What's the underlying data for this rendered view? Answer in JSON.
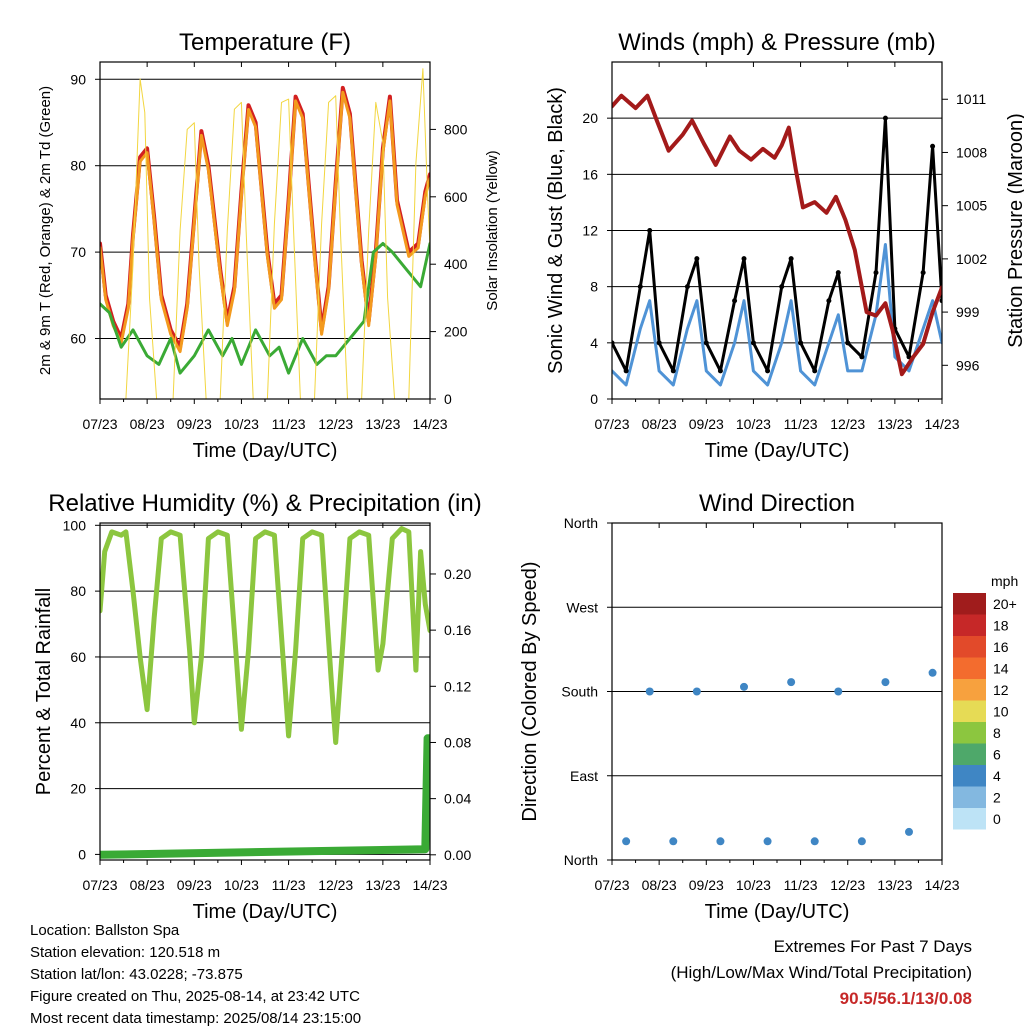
{
  "chart_data": [
    {
      "type": "line",
      "title": "Temperature (F)",
      "xlabel": "Time (Day/UTC)",
      "ylabel": "2m & 9m T (Red, Orange) & 2m Td (Green)",
      "y2label": "Solar Insolation (Yellow)",
      "x_ticks": [
        "07/23",
        "08/23",
        "09/23",
        "10/23",
        "11/23",
        "12/23",
        "13/23",
        "14/23"
      ],
      "ylim": [
        53,
        92
      ],
      "y_ticks": [
        60,
        70,
        80,
        90
      ],
      "y2lim": [
        0,
        1000
      ],
      "y2_ticks": [
        0,
        200,
        400,
        600,
        800
      ],
      "grid": "horizontal at left ticks",
      "series": [
        {
          "name": "2m T",
          "color": "#d32020",
          "x": [
            0,
            0.12,
            0.28,
            0.45,
            0.6,
            0.7,
            0.85,
            1.0,
            1.15,
            1.3,
            1.5,
            1.7,
            1.85,
            2.0,
            2.15,
            2.3,
            2.55,
            2.7,
            2.85,
            3.0,
            3.15,
            3.3,
            3.55,
            3.7,
            3.85,
            4.0,
            4.15,
            4.3,
            4.55,
            4.7,
            4.85,
            5.0,
            5.15,
            5.3,
            5.55,
            5.7,
            5.85,
            6.0,
            6.15,
            6.3,
            6.55,
            6.75,
            6.9,
            7.0
          ],
          "y": [
            71,
            65,
            62,
            60,
            64,
            72,
            81,
            82,
            74,
            65,
            61,
            59,
            64,
            74,
            84,
            80,
            68,
            62,
            66,
            77,
            87,
            85,
            70,
            64,
            65,
            76,
            88,
            86,
            70,
            61,
            66,
            78,
            89,
            86,
            69,
            62,
            70,
            82,
            88,
            76,
            70,
            71,
            77,
            79
          ]
        },
        {
          "name": "9m T",
          "color": "#f39a1e",
          "x": [
            0,
            0.12,
            0.28,
            0.45,
            0.6,
            0.7,
            0.85,
            1.0,
            1.15,
            1.3,
            1.5,
            1.7,
            1.85,
            2.0,
            2.15,
            2.3,
            2.55,
            2.7,
            2.85,
            3.0,
            3.15,
            3.3,
            3.55,
            3.7,
            3.85,
            4.0,
            4.15,
            4.3,
            4.55,
            4.7,
            4.85,
            5.0,
            5.15,
            5.3,
            5.55,
            5.7,
            5.85,
            6.0,
            6.15,
            6.3,
            6.55,
            6.75,
            6.9,
            7.0
          ],
          "y": [
            70.5,
            64.5,
            61.5,
            59.5,
            63.5,
            71.5,
            80.5,
            81.5,
            73.5,
            64.5,
            60.5,
            58.5,
            63.5,
            73.5,
            83.5,
            79.5,
            67.5,
            61.5,
            65.5,
            76.5,
            86.5,
            84.5,
            69.5,
            63.5,
            64.5,
            75.5,
            87.5,
            85.5,
            69.5,
            60.5,
            65.5,
            77.5,
            88.5,
            85.5,
            68.5,
            61.5,
            69.5,
            81.5,
            87.5,
            75.5,
            69.5,
            70.5,
            76.5,
            78.5
          ]
        },
        {
          "name": "2m Td",
          "color": "#3aaa35",
          "x": [
            0,
            0.2,
            0.45,
            0.7,
            1.0,
            1.25,
            1.5,
            1.7,
            2.0,
            2.3,
            2.6,
            2.8,
            3.0,
            3.3,
            3.6,
            3.8,
            4.0,
            4.3,
            4.6,
            4.8,
            5.0,
            5.3,
            5.6,
            5.8,
            6.0,
            6.2,
            6.5,
            6.8,
            7.0
          ],
          "y": [
            64,
            63,
            59,
            61,
            58,
            57,
            60,
            56,
            58,
            61,
            58,
            60,
            57,
            61,
            58,
            59,
            56,
            60,
            57,
            58,
            58,
            60,
            62,
            70,
            71,
            70,
            68,
            66,
            71
          ]
        },
        {
          "name": "Solar Insolation",
          "color": "#f2d640",
          "axis": "y2",
          "x": [
            0,
            0.55,
            0.7,
            0.85,
            0.95,
            1.05,
            1.2,
            1.55,
            1.7,
            1.85,
            2.0,
            2.1,
            2.25,
            2.55,
            2.7,
            2.85,
            3.0,
            3.1,
            3.25,
            3.55,
            3.7,
            3.85,
            4.0,
            4.1,
            4.25,
            4.55,
            4.7,
            4.85,
            5.0,
            5.1,
            5.25,
            5.55,
            5.7,
            5.85,
            6.0,
            6.1,
            6.25,
            6.55,
            6.7,
            6.85,
            6.95,
            7.0
          ],
          "y": [
            0,
            0,
            400,
            950,
            850,
            300,
            0,
            0,
            500,
            800,
            820,
            400,
            0,
            0,
            500,
            860,
            880,
            500,
            0,
            0,
            520,
            880,
            890,
            520,
            0,
            0,
            520,
            880,
            900,
            500,
            0,
            0,
            500,
            880,
            760,
            300,
            0,
            0,
            700,
            980,
            600,
            450
          ]
        }
      ]
    },
    {
      "type": "line",
      "title": "Winds (mph) & Pressure (mb)",
      "xlabel": "Time (Day/UTC)",
      "ylabel": "Sonic Wind & Gust (Blue, Black)",
      "y2label": "Station Pressure (Maroon)",
      "x_ticks": [
        "07/23",
        "08/23",
        "09/23",
        "10/23",
        "11/23",
        "12/23",
        "13/23",
        "14/23"
      ],
      "ylim": [
        0,
        24
      ],
      "y_ticks": [
        0,
        4,
        8,
        12,
        16,
        20
      ],
      "y2lim": [
        994.1,
        1013.1
      ],
      "y2_ticks": [
        996,
        999,
        1002,
        1005,
        1008,
        1011
      ],
      "grid": "horizontal at left ticks",
      "series": [
        {
          "name": "Sonic Wind",
          "color": "#4f93d6",
          "x": [
            0,
            0.3,
            0.6,
            0.8,
            1.0,
            1.3,
            1.6,
            1.8,
            2.0,
            2.3,
            2.6,
            2.8,
            3.0,
            3.3,
            3.6,
            3.8,
            4.0,
            4.3,
            4.6,
            4.8,
            5.0,
            5.3,
            5.6,
            5.8,
            6.0,
            6.3,
            6.6,
            6.8,
            7.0
          ],
          "y": [
            2,
            1,
            5,
            7,
            2,
            1,
            5,
            7,
            2,
            1,
            4,
            7,
            2,
            1,
            4,
            7,
            2,
            1,
            4,
            6,
            2,
            2,
            6,
            11,
            3,
            2,
            5,
            7,
            4
          ]
        },
        {
          "name": "Gust",
          "color": "#000000",
          "x": [
            0,
            0.3,
            0.6,
            0.8,
            1.0,
            1.3,
            1.6,
            1.8,
            2.0,
            2.3,
            2.6,
            2.8,
            3.0,
            3.3,
            3.6,
            3.8,
            4.0,
            4.3,
            4.6,
            4.8,
            5.0,
            5.3,
            5.6,
            5.8,
            6.0,
            6.3,
            6.6,
            6.8,
            7.0
          ],
          "y": [
            4,
            2,
            8,
            12,
            4,
            2,
            8,
            10,
            4,
            2,
            7,
            10,
            4,
            2,
            8,
            10,
            4,
            2,
            7,
            9,
            4,
            3,
            9,
            20,
            5,
            3,
            9,
            18,
            7
          ]
        },
        {
          "name": "Station Pressure",
          "color": "#a31a1a",
          "axis": "y2",
          "x": [
            0,
            0.2,
            0.5,
            0.75,
            0.95,
            1.2,
            1.5,
            1.7,
            1.95,
            2.2,
            2.5,
            2.7,
            2.95,
            3.2,
            3.45,
            3.6,
            3.75,
            3.9,
            4.05,
            4.3,
            4.55,
            4.75,
            4.95,
            5.15,
            5.4,
            5.6,
            5.8,
            5.95,
            6.15,
            6.4,
            6.6,
            6.8,
            7.0
          ],
          "y": [
            1010.6,
            1011.2,
            1010.5,
            1011.2,
            1009.8,
            1008.1,
            1009.0,
            1009.8,
            1008.5,
            1007.3,
            1008.9,
            1008.1,
            1007.6,
            1008.2,
            1007.7,
            1008.4,
            1009.4,
            1007.0,
            1004.9,
            1005.2,
            1004.6,
            1005.5,
            1004.2,
            1002.5,
            999.0,
            998.8,
            999.5,
            998.0,
            995.5,
            996.5,
            997.2,
            999.0,
            1000.4
          ]
        }
      ]
    },
    {
      "type": "line",
      "title": "Relative Humidity (%) & Precipitation (in)",
      "xlabel": "Time (Day/UTC)",
      "ylabel": "Percent & Total Rainfall",
      "x_ticks": [
        "07/23",
        "08/23",
        "09/23",
        "10/23",
        "11/23",
        "12/23",
        "13/23",
        "14/23"
      ],
      "ylim": [
        -1.7,
        100.7
      ],
      "y_ticks": [
        0,
        20,
        40,
        60,
        80,
        100
      ],
      "y2lim": [
        -0.0037,
        0.2363
      ],
      "y2_ticks": [
        "0.00",
        "0.04",
        "0.08",
        "0.12",
        "0.16",
        "0.20"
      ],
      "grid": "horizontal at left ticks",
      "series": [
        {
          "name": "Relative Humidity",
          "color": "#8cc63f",
          "x": [
            0,
            0.1,
            0.25,
            0.45,
            0.55,
            0.7,
            0.85,
            1.0,
            1.15,
            1.3,
            1.5,
            1.7,
            1.9,
            2.0,
            2.15,
            2.3,
            2.5,
            2.7,
            2.9,
            3.0,
            3.15,
            3.3,
            3.5,
            3.7,
            3.9,
            4.0,
            4.15,
            4.3,
            4.5,
            4.7,
            4.9,
            5.0,
            5.15,
            5.3,
            5.5,
            5.7,
            5.9,
            6.0,
            6.2,
            6.4,
            6.55,
            6.7,
            6.8,
            6.9,
            7.0
          ],
          "y": [
            74,
            92,
            98,
            97,
            98,
            80,
            60,
            44,
            72,
            96,
            98,
            97,
            62,
            40,
            60,
            96,
            98,
            97,
            58,
            38,
            62,
            96,
            98,
            97,
            56,
            36,
            62,
            96,
            98,
            97,
            54,
            34,
            64,
            96,
            98,
            97,
            56,
            64,
            96,
            99,
            98,
            56,
            92,
            76,
            68
          ]
        },
        {
          "name": "Total Rainfall",
          "color": "#3aaa35",
          "axis": "y2",
          "x": [
            0,
            6.9,
            6.95,
            7.0
          ],
          "y": [
            0.0,
            0.004,
            0.083,
            0.083
          ]
        }
      ]
    },
    {
      "type": "scatter",
      "title": "Wind Direction",
      "xlabel": "Time (Day/UTC)",
      "ylabel": "Direction (Colored By Speed)",
      "x_ticks": [
        "07/23",
        "08/23",
        "09/23",
        "10/23",
        "11/23",
        "12/23",
        "13/23",
        "14/23"
      ],
      "y_ticks": [
        "North",
        "East",
        "South",
        "West",
        "North"
      ],
      "ylim": [
        0,
        360
      ],
      "grid": "horizontal at direction ticks",
      "legend_title": "mph",
      "legend_labels": [
        "20+",
        "18",
        "16",
        "14",
        "12",
        "10",
        "8",
        "6",
        "4",
        "2",
        "0"
      ],
      "legend_colors": [
        "#a01c1c",
        "#c62828",
        "#e24a2a",
        "#f36c2e",
        "#f7a13e",
        "#e6db55",
        "#8cc63f",
        "#4ea86a",
        "#3f86c4",
        "#83b8e0",
        "#bde3f6"
      ],
      "series": [
        {
          "name": "Direction",
          "x": [
            0.3,
            0.8,
            1.3,
            1.8,
            2.3,
            2.8,
            3.3,
            3.8,
            4.3,
            4.8,
            5.3,
            5.8,
            6.3,
            6.8
          ],
          "y": [
            20,
            180,
            20,
            180,
            20,
            185,
            20,
            190,
            20,
            180,
            20,
            190,
            30,
            200
          ]
        }
      ]
    }
  ],
  "footer": {
    "location": "Location: Ballston Spa",
    "elevation": "Station elevation: 120.518 m",
    "latlon": "Station lat/lon: 43.0228; -73.875",
    "created": "Figure created on Thu, 2025-08-14, at 23:42 UTC",
    "recent": "Most recent data timestamp: 2025/08/14 23:15:00",
    "extremes_title": "Extremes For Past 7 Days",
    "extremes_desc": "(High/Low/Max Wind/Total Precipitation)",
    "extremes_value": "90.5/56.1/13/0.08"
  }
}
